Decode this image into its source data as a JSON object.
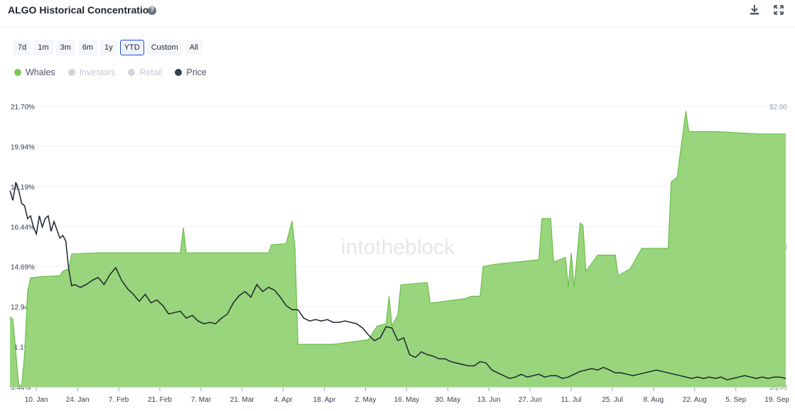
{
  "header": {
    "title": "ALGO Historical Concentration",
    "help_icon": "question-circle-icon",
    "help_glyph": "?",
    "download_icon": "download-icon",
    "expand_icon": "expand-icon"
  },
  "ranges": [
    "7d",
    "1m",
    "3m",
    "6m",
    "1y",
    "YTD",
    "Custom",
    "All"
  ],
  "active_range": "YTD",
  "legend": [
    {
      "label": "Whales",
      "color": "#7cc65a",
      "active": true
    },
    {
      "label": "Investors",
      "color": "#d1d5db",
      "active": false
    },
    {
      "label": "Retail",
      "color": "#d1d5db",
      "active": false
    },
    {
      "label": "Price",
      "color": "#374151",
      "active": true
    }
  ],
  "watermark": "intotheblock",
  "colors": {
    "whales_fill": "#98d57c",
    "whales_line": "#6dbf4b",
    "price_line": "#1f2430",
    "grid": "#eef0f3"
  },
  "chart_data": {
    "type": "area",
    "x_ticks": [
      "10. Jan",
      "24. Jan",
      "7. Feb",
      "21. Feb",
      "7. Mar",
      "21. Mar",
      "4. Apr",
      "18. Apr",
      "2. May",
      "16. May",
      "30. May",
      "13. Jun",
      "27. Jun",
      "11. Jul",
      "25. Jul",
      "8. Aug",
      "22. Aug",
      "5. Sep",
      "19. Sep"
    ],
    "y_left_ticks": [
      "21.70%",
      "19.94%",
      "18.19%",
      "16.44%",
      "14.69%",
      "12.94%",
      "11.19%",
      "9.44%"
    ],
    "y_left_range": [
      9.44,
      21.7
    ],
    "y_right_ticks": [
      "$2.00",
      "$1.00",
      "$0.00"
    ],
    "y_right_range": [
      0,
      2
    ],
    "x_range_days": [
      0,
      264
    ],
    "series": [
      {
        "name": "Whales",
        "axis": "left",
        "points": [
          [
            0,
            12.5
          ],
          [
            1,
            12.4
          ],
          [
            3,
            9.5
          ],
          [
            4,
            9.5
          ],
          [
            5,
            10.9
          ],
          [
            6,
            13.6
          ],
          [
            7,
            14.2
          ],
          [
            10,
            14.25
          ],
          [
            17,
            14.3
          ],
          [
            18,
            14.5
          ],
          [
            20,
            14.6
          ],
          [
            21,
            15.25
          ],
          [
            30,
            15.3
          ],
          [
            55,
            15.3
          ],
          [
            58,
            15.3
          ],
          [
            59,
            16.4
          ],
          [
            60,
            15.3
          ],
          [
            80,
            15.3
          ],
          [
            88,
            15.3
          ],
          [
            89,
            15.65
          ],
          [
            94,
            15.7
          ],
          [
            96,
            16.7
          ],
          [
            97,
            15.5
          ],
          [
            98,
            11.3
          ],
          [
            110,
            11.3
          ],
          [
            122,
            11.5
          ],
          [
            125,
            12.1
          ],
          [
            128,
            12.2
          ],
          [
            129,
            13.4
          ],
          [
            130,
            12.1
          ],
          [
            132,
            12.6
          ],
          [
            133,
            13.9
          ],
          [
            142,
            14.0
          ],
          [
            143,
            13.1
          ],
          [
            155,
            13.3
          ],
          [
            157,
            13.4
          ],
          [
            160,
            13.4
          ],
          [
            161,
            14.7
          ],
          [
            165,
            14.8
          ],
          [
            180,
            15.0
          ],
          [
            181,
            16.8
          ],
          [
            184,
            16.8
          ],
          [
            185,
            14.9
          ],
          [
            189,
            15.1
          ],
          [
            190,
            13.8
          ],
          [
            191,
            15.3
          ],
          [
            192,
            13.8
          ],
          [
            194,
            16.6
          ],
          [
            195,
            16.5
          ],
          [
            196,
            14.5
          ],
          [
            200,
            15.2
          ],
          [
            206,
            15.2
          ],
          [
            207,
            14.3
          ],
          [
            211,
            14.6
          ],
          [
            215,
            15.5
          ],
          [
            224,
            15.5
          ],
          [
            225,
            18.4
          ],
          [
            227,
            18.6
          ],
          [
            230,
            21.5
          ],
          [
            231,
            20.6
          ],
          [
            240,
            20.6
          ],
          [
            255,
            20.5
          ],
          [
            264,
            20.5
          ]
        ]
      },
      {
        "name": "Price",
        "axis": "right",
        "points": [
          [
            0,
            1.4
          ],
          [
            1,
            1.33
          ],
          [
            2,
            1.46
          ],
          [
            3,
            1.4
          ],
          [
            4,
            1.31
          ],
          [
            5,
            1.29
          ],
          [
            6,
            1.2
          ],
          [
            7,
            1.22
          ],
          [
            8,
            1.14
          ],
          [
            9,
            1.09
          ],
          [
            10,
            1.22
          ],
          [
            11,
            1.14
          ],
          [
            12,
            1.2
          ],
          [
            13,
            1.22
          ],
          [
            14,
            1.11
          ],
          [
            15,
            1.18
          ],
          [
            16,
            1.12
          ],
          [
            17,
            1.06
          ],
          [
            18,
            1.08
          ],
          [
            19,
            1.04
          ],
          [
            20,
            0.84
          ],
          [
            21,
            0.72
          ],
          [
            22,
            0.73
          ],
          [
            24,
            0.71
          ],
          [
            26,
            0.73
          ],
          [
            28,
            0.76
          ],
          [
            30,
            0.78
          ],
          [
            32,
            0.73
          ],
          [
            34,
            0.8
          ],
          [
            36,
            0.85
          ],
          [
            38,
            0.76
          ],
          [
            40,
            0.7
          ],
          [
            42,
            0.66
          ],
          [
            44,
            0.61
          ],
          [
            46,
            0.66
          ],
          [
            48,
            0.6
          ],
          [
            50,
            0.62
          ],
          [
            52,
            0.58
          ],
          [
            54,
            0.52
          ],
          [
            56,
            0.53
          ],
          [
            58,
            0.54
          ],
          [
            60,
            0.49
          ],
          [
            62,
            0.51
          ],
          [
            64,
            0.47
          ],
          [
            66,
            0.45
          ],
          [
            68,
            0.46
          ],
          [
            70,
            0.45
          ],
          [
            72,
            0.49
          ],
          [
            74,
            0.52
          ],
          [
            76,
            0.6
          ],
          [
            78,
            0.65
          ],
          [
            80,
            0.68
          ],
          [
            82,
            0.64
          ],
          [
            84,
            0.73
          ],
          [
            86,
            0.68
          ],
          [
            88,
            0.71
          ],
          [
            90,
            0.69
          ],
          [
            92,
            0.64
          ],
          [
            94,
            0.58
          ],
          [
            96,
            0.55
          ],
          [
            98,
            0.55
          ],
          [
            100,
            0.49
          ],
          [
            102,
            0.47
          ],
          [
            104,
            0.48
          ],
          [
            106,
            0.47
          ],
          [
            108,
            0.48
          ],
          [
            110,
            0.46
          ],
          [
            112,
            0.46
          ],
          [
            114,
            0.47
          ],
          [
            116,
            0.46
          ],
          [
            118,
            0.45
          ],
          [
            120,
            0.42
          ],
          [
            122,
            0.37
          ],
          [
            124,
            0.33
          ],
          [
            126,
            0.35
          ],
          [
            128,
            0.43
          ],
          [
            130,
            0.42
          ],
          [
            132,
            0.33
          ],
          [
            134,
            0.35
          ],
          [
            136,
            0.23
          ],
          [
            138,
            0.21
          ],
          [
            140,
            0.25
          ],
          [
            142,
            0.23
          ],
          [
            144,
            0.22
          ],
          [
            146,
            0.2
          ],
          [
            148,
            0.2
          ],
          [
            150,
            0.18
          ],
          [
            152,
            0.17
          ],
          [
            154,
            0.16
          ],
          [
            156,
            0.15
          ],
          [
            158,
            0.15
          ],
          [
            160,
            0.18
          ],
          [
            162,
            0.17
          ],
          [
            164,
            0.12
          ],
          [
            166,
            0.1
          ],
          [
            168,
            0.08
          ],
          [
            170,
            0.06
          ],
          [
            172,
            0.07
          ],
          [
            174,
            0.09
          ],
          [
            176,
            0.07
          ],
          [
            178,
            0.08
          ],
          [
            180,
            0.09
          ],
          [
            182,
            0.07
          ],
          [
            184,
            0.08
          ],
          [
            186,
            0.08
          ],
          [
            188,
            0.06
          ],
          [
            190,
            0.07
          ],
          [
            192,
            0.09
          ],
          [
            194,
            0.11
          ],
          [
            196,
            0.12
          ],
          [
            198,
            0.13
          ],
          [
            200,
            0.12
          ],
          [
            202,
            0.14
          ],
          [
            204,
            0.12
          ],
          [
            206,
            0.1
          ],
          [
            208,
            0.1
          ],
          [
            210,
            0.09
          ],
          [
            212,
            0.08
          ],
          [
            214,
            0.09
          ],
          [
            216,
            0.1
          ],
          [
            218,
            0.11
          ],
          [
            220,
            0.12
          ],
          [
            222,
            0.11
          ],
          [
            224,
            0.1
          ],
          [
            226,
            0.09
          ],
          [
            228,
            0.08
          ],
          [
            230,
            0.07
          ],
          [
            232,
            0.06
          ],
          [
            234,
            0.07
          ],
          [
            236,
            0.06
          ],
          [
            238,
            0.07
          ],
          [
            240,
            0.06
          ],
          [
            242,
            0.07
          ],
          [
            244,
            0.05
          ],
          [
            246,
            0.06
          ],
          [
            248,
            0.07
          ],
          [
            250,
            0.08
          ],
          [
            252,
            0.07
          ],
          [
            254,
            0.06
          ],
          [
            256,
            0.07
          ],
          [
            258,
            0.06
          ],
          [
            260,
            0.07
          ],
          [
            262,
            0.07
          ],
          [
            264,
            0.06
          ]
        ]
      }
    ]
  }
}
